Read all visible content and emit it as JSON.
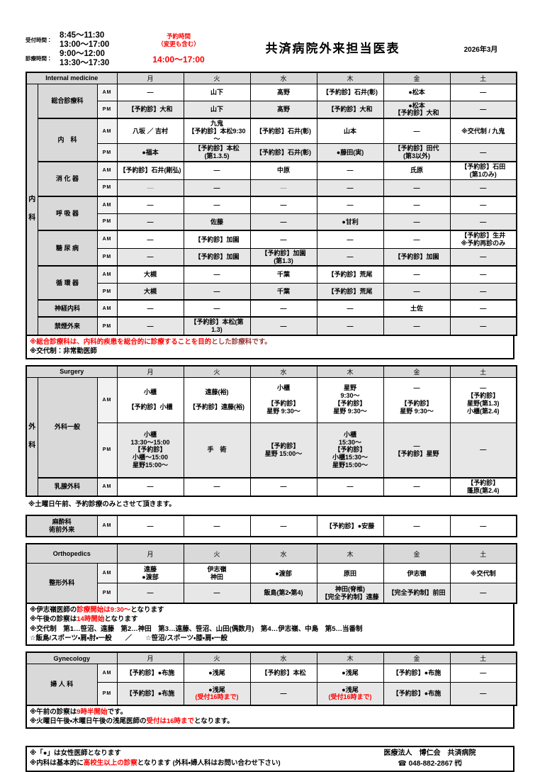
{
  "header": {
    "reception_label": "受付時間：",
    "reception_times": "8:45～11:30\n13:00～17:00",
    "consult_label": "診療時間：",
    "consult_times": "9:00～12:00\n13:30～17:30",
    "reservation_label": "予約時間\n（変更も含む）",
    "reservation_time": "14:00～17:00",
    "title": "共済病院外来担当医表",
    "date": "2026年3月"
  },
  "days": [
    "月",
    "火",
    "水",
    "木",
    "金",
    "土"
  ],
  "tables": [
    {
      "name": "internal-medicine-table",
      "section_label": "Internal medicine",
      "side_label": "内科",
      "rows": [
        {
          "dept": "総合診療科",
          "span": 2,
          "period": "AM",
          "cells": [
            "—",
            "山下",
            "髙野",
            "【予約診】石井(彰)",
            "●松本",
            "—"
          ]
        },
        {
          "period": "PM",
          "cells": [
            "【予約診】大和",
            "山下",
            "髙野",
            "【予約診】大和",
            [
              "●松本",
              "【予約診】大和"
            ],
            "—"
          ]
        },
        {
          "dept": "内　科",
          "span": 2,
          "period": "AM",
          "cells": [
            "八坂 ／ 吉村",
            [
              "九鬼",
              "【予約診】本松9:30～"
            ],
            "【予約診】石井(彰)",
            "山本",
            "—",
            "※交代制 / 九鬼"
          ]
        },
        {
          "period": "PM",
          "cells": [
            "●福本",
            [
              "【予約診】本松",
              "(第1.3.5)"
            ],
            "【予約診】石井(彰)",
            "●藤田(実)",
            [
              "【予約診】田代",
              "(第3以外)"
            ],
            "—"
          ]
        },
        {
          "dept": "消 化 器",
          "span": 2,
          "period": "AM",
          "cells": [
            "【予約診】石井(剛弘)",
            "—",
            "中原",
            "—",
            "氏原",
            [
              "【予約診】石田",
              "(第1のみ)"
            ]
          ]
        },
        {
          "period": "PM",
          "cells": [
            {
              "t": "—",
              "c": "grey"
            },
            "—",
            {
              "t": "—",
              "c": "grey"
            },
            "—",
            "—",
            "—"
          ]
        },
        {
          "dept": "呼 吸 器",
          "span": 2,
          "period": "AM",
          "cells": [
            "—",
            "—",
            "—",
            "—",
            "—",
            "—"
          ]
        },
        {
          "period": "PM",
          "cells": [
            "—",
            "佐藤",
            "—",
            "●甘利",
            "—",
            "—"
          ]
        },
        {
          "dept": "糖 尿 病",
          "span": 2,
          "period": "AM",
          "cells": [
            "—",
            "【予約診】加園",
            "—",
            "—",
            "—",
            [
              "【予約診】生井",
              "※予約再診のみ"
            ]
          ]
        },
        {
          "period": "PM",
          "cells": [
            "—",
            "【予約診】加園",
            [
              "【予約診】加園",
              "(第1.3)"
            ],
            "—",
            "【予約診】加園",
            "—"
          ]
        },
        {
          "dept": "循 環 器",
          "span": 2,
          "period": "AM",
          "cells": [
            "大槻",
            "—",
            "千葉",
            "【予約診】荒尾",
            "—",
            "—"
          ]
        },
        {
          "period": "PM",
          "cells": [
            "大槻",
            "—",
            "千葉",
            "【予約診】荒尾",
            "—",
            "—"
          ]
        },
        {
          "dept": "神経内科",
          "span": 1,
          "period": "AM",
          "cells": [
            "—",
            "—",
            "—",
            "—",
            "土佐",
            "—"
          ]
        },
        {
          "dept": "禁煙外来",
          "span": 1,
          "period": "PM",
          "cells": [
            "—",
            "【予約診】本松(第1.3)",
            "—",
            "—",
            "—",
            "—"
          ]
        }
      ]
    },
    {
      "name": "surgery-table",
      "section_label": "Surgery",
      "side_label": "外科",
      "rows": [
        {
          "dept": "外科一般",
          "span": 2,
          "period": "AM",
          "cells": [
            [
              "小櫃",
              "",
              "【予約診】小櫃"
            ],
            [
              "遠藤(裕)",
              "",
              "【予約診】遠藤(裕)"
            ],
            [
              "小櫃",
              "",
              "【予約診】",
              "星野 9:30～"
            ],
            [
              "星野",
              "9:30～",
              "【予約診】",
              "星野 9:30～"
            ],
            [
              "—",
              "",
              "【予約診】",
              "星野 9:30～"
            ],
            [
              "—",
              "【予約診】",
              "星野(第1.3)",
              "小櫃(第2.4)"
            ]
          ]
        },
        {
          "period": "PM",
          "cells": [
            [
              "小櫃",
              "13:30～15:00",
              "【予約診】",
              "小櫃～15:00",
              "星野15:00～"
            ],
            [
              "手　術"
            ],
            [
              "【予約診】",
              "星野 15:00～"
            ],
            [
              "小櫃",
              "15:30～",
              "【予約診】",
              "小櫃15:30～",
              "星野15:00～"
            ],
            [
              "—",
              "【予約診】星野"
            ],
            [
              "—"
            ]
          ]
        },
        {
          "dept": "乳腺外科",
          "span": 1,
          "period": "AM",
          "cells": [
            "—",
            "—",
            "—",
            "—",
            "—",
            [
              "【予約診】",
              "蓬原(第2.4)"
            ]
          ]
        }
      ]
    },
    {
      "name": "anesthesia-table",
      "section_label": null,
      "side_label": null,
      "rows": [
        {
          "dept": "麻酔科\n術前外来",
          "span": 1,
          "period": "AM",
          "cells": [
            "—",
            "—",
            "—",
            "【予約診】●安藤",
            "—",
            "—"
          ]
        }
      ]
    },
    {
      "name": "orthopedics-table",
      "section_label": "Orthopedics",
      "side_label": null,
      "rows": [
        {
          "dept": "整形外科",
          "span": 2,
          "period": "AM",
          "cells": [
            [
              "遠藤",
              "●渡部"
            ],
            [
              "伊志嶺",
              "神田"
            ],
            "●渡部",
            "原田",
            "伊志嶺",
            "※交代制"
          ]
        },
        {
          "period": "PM",
          "cells": [
            "—",
            "—",
            "飯島(第2・第4)",
            [
              "神田(脊椎)",
              "【完全予約制】遠藤"
            ],
            "【完全予約制】前田",
            "—"
          ]
        }
      ]
    },
    {
      "name": "gynecology-table",
      "section_label": "Gynecology",
      "side_label": null,
      "rows": [
        {
          "dept": "婦 人 科",
          "span": 2,
          "period": "AM",
          "cells": [
            "【予約診】●布施",
            "●浅尾",
            "【予約診】本松",
            "●浅尾",
            "【予約診】●布施",
            "—"
          ]
        },
        {
          "period": "PM",
          "cells": [
            "【予約診】●布施",
            [
              "●浅尾",
              {
                "t": "(受付16時まで)",
                "c": "red"
              }
            ],
            "—",
            [
              "●浅尾",
              {
                "t": "(受付16時まで)",
                "c": "red"
              }
            ],
            "【予約診】●布施",
            "—"
          ]
        }
      ]
    }
  ],
  "note_blocks": [
    {
      "name": "internal-notes",
      "lines": [
        [
          {
            "t": "※総合診療科は、内科的疾患を総合的に診療することを目的",
            "c": "red"
          },
          {
            "t": "とした診療科です。",
            "c": "darkred"
          }
        ],
        [
          {
            "t": "※交代制：非常勤医師"
          }
        ]
      ]
    },
    {
      "name": "surgery-notes",
      "lines": [
        [
          {
            "t": "※土曜日午前、予約診療のみとさせて頂きます。"
          }
        ]
      ]
    },
    {
      "name": "orthopedics-notes",
      "lines": [
        [
          {
            "t": "※伊志嶺医師の"
          },
          {
            "t": "診療開始は9:30～",
            "c": "red"
          },
          {
            "t": "となります"
          }
        ],
        [
          {
            "t": "※午後の診察は"
          },
          {
            "t": "14時開始",
            "c": "red"
          },
          {
            "t": "となります"
          }
        ],
        [
          {
            "t": "※交代制　第1…笹沼、遠藤　第2…神田　第3…遠藤、笹沼、山田(偶数月)　第4…伊志嶺、中島　第5…当番制"
          }
        ],
        [
          {
            "t": "☆飯島/スポーツ・肩・肘・一般　　／　　☆笹沼/スポーツ・膝・肩・一般"
          }
        ]
      ]
    },
    {
      "name": "gynecology-notes",
      "lines": [
        [
          {
            "t": "※午前の診察は"
          },
          {
            "t": "9時半開始",
            "c": "red"
          },
          {
            "t": "です。"
          }
        ],
        [
          {
            "t": "※火曜日午後・木曜日午後の浅尾医師の"
          },
          {
            "t": "受付は16時まで",
            "c": "red"
          },
          {
            "t": "となります。"
          }
        ]
      ]
    },
    {
      "name": "footer-notes",
      "lines": [
        [
          {
            "t": "※「●」は女性医師となります"
          }
        ],
        [
          {
            "t": "※内科は基本的に"
          },
          {
            "t": "高校生以上の診察",
            "c": "red"
          },
          {
            "t": "となります (外科・婦人科はお問い合わせ下さい)"
          }
        ]
      ]
    }
  ],
  "footer": {
    "hospital": "医療法人　博仁会　共済病院",
    "phone": "☎ 048-882-2867 ㈹"
  },
  "colors": {
    "accent_red": "#ff0000",
    "header_grey": "#d9d9d9",
    "pm_row_grey": "#e7e7e7"
  }
}
